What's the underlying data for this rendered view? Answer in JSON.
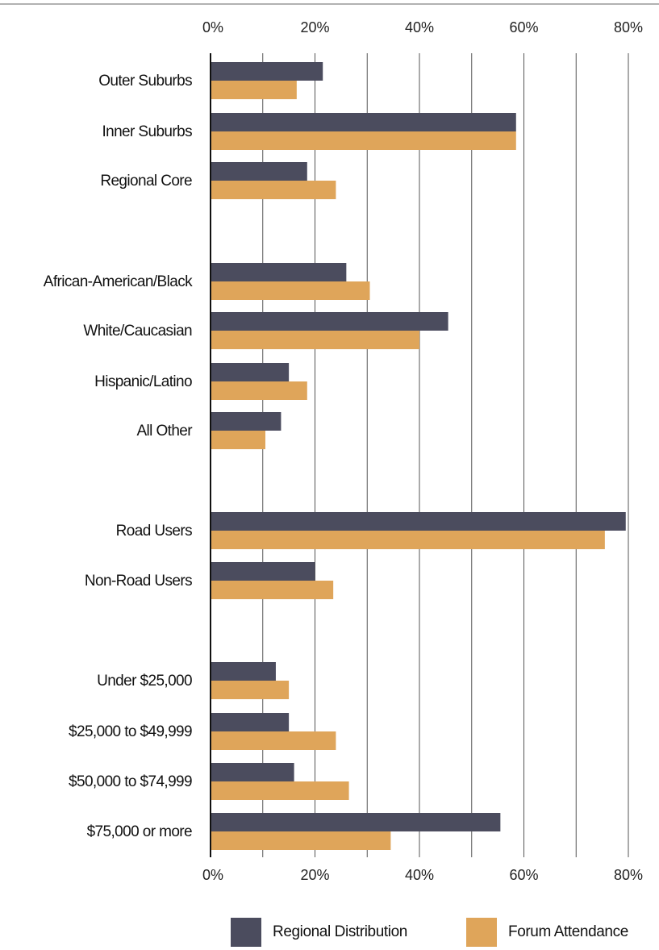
{
  "colors": {
    "regional": "#4b4c5e",
    "forum": "#dfa55a",
    "grid": "#555555",
    "axis": "#111111",
    "top_rule": "#999999"
  },
  "legend": {
    "regional_label": "Regional Distribution",
    "forum_label": "Forum Attendance"
  },
  "chart_data": {
    "type": "bar",
    "orientation": "horizontal",
    "xlim": [
      0,
      80
    ],
    "ticks": [
      "0%",
      "20%",
      "40%",
      "60%",
      "80%"
    ],
    "tick_values": [
      0,
      20,
      40,
      60,
      80
    ],
    "grid": true,
    "legend_position": "bottom",
    "groups": [
      {
        "categories": [
          "Outer Suburbs",
          "Inner Suburbs",
          "Regional Core"
        ]
      },
      {
        "categories": [
          "African-American/Black",
          "White/Caucasian",
          "Hispanic/Latino",
          "All Other"
        ]
      },
      {
        "categories": [
          "Road Users",
          "Non-Road Users"
        ]
      },
      {
        "categories": [
          "Under $25,000",
          "$25,000 to $49,999",
          "$50,000 to $74,999",
          "$75,000 or more"
        ]
      }
    ],
    "categories": [
      "Outer Suburbs",
      "Inner Suburbs",
      "Regional Core",
      "African-American/Black",
      "White/Caucasian",
      "Hispanic/Latino",
      "All Other",
      "Road Users",
      "Non-Road Users",
      "Under $25,000",
      "$25,000 to $49,999",
      "$50,000 to $74,999",
      "$75,000 or more"
    ],
    "series": [
      {
        "name": "Regional Distribution",
        "values": [
          21.5,
          58.5,
          18.5,
          26,
          45.5,
          15,
          13.5,
          79.5,
          20,
          12.5,
          15,
          16,
          55.5
        ]
      },
      {
        "name": "Forum Attendance",
        "values": [
          16.5,
          58.5,
          24,
          30.5,
          40,
          18.5,
          10.5,
          75.5,
          23.5,
          15,
          24,
          26.5,
          34.5
        ]
      }
    ]
  }
}
